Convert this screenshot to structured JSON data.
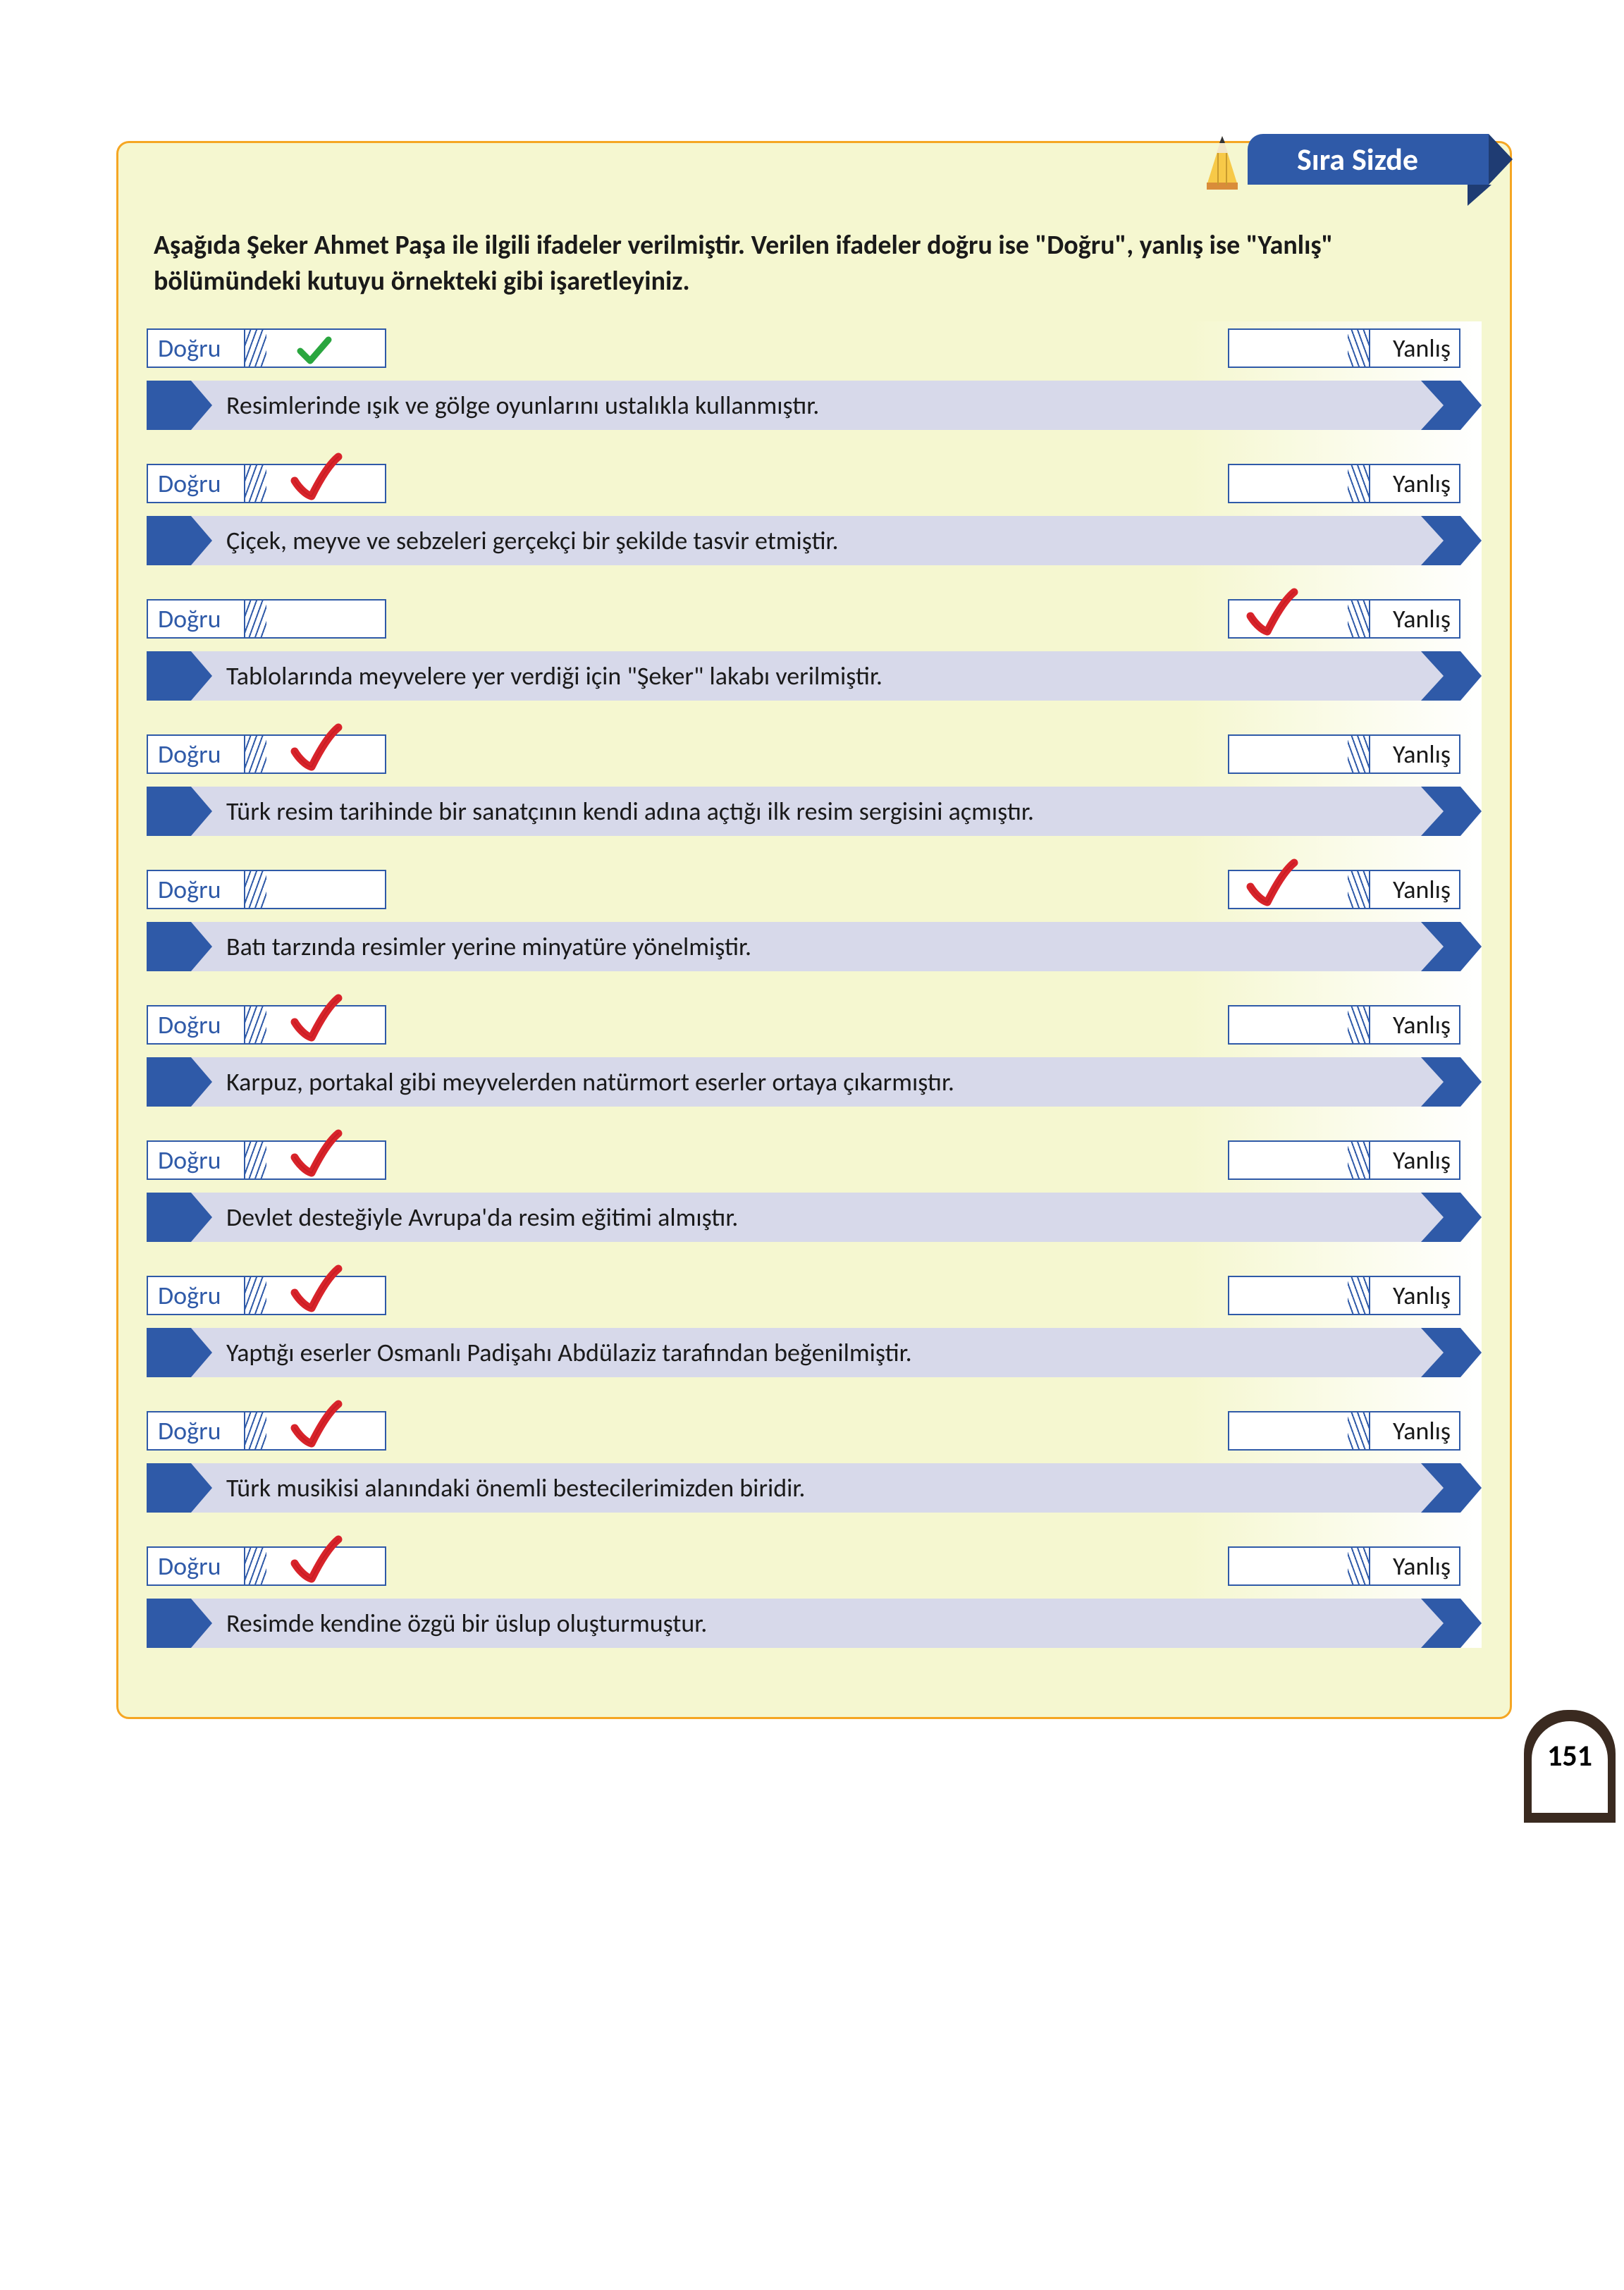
{
  "header": {
    "tab_label": "Sıra Sizde"
  },
  "instructions": "Aşağıda Şeker Ahmet Paşa ile ilgili ifadeler verilmiştir. Verilen ifadeler doğru ise \"Doğru\", yanlış ise \"Yanlış\" bölümündeki kutuyu örnekteki gibi işaretleyiniz.",
  "labels": {
    "true": "Doğru",
    "false": "Yanlış"
  },
  "page_number": "151",
  "colors": {
    "accent_blue": "#2f5aa8",
    "accent_dark": "#1f3c73",
    "panel_bg": "#f5f7d0",
    "bar_bg": "#d7d9ea",
    "border_orange": "#f5a623",
    "check_green": "#2aa63f",
    "check_red": "#d8232a"
  },
  "rows": [
    {
      "statement": "Resimlerinde ışık ve gölge oyunlarını ustalıkla kullanmıştır.",
      "mark": "dogru",
      "style": "green"
    },
    {
      "statement": "Çiçek, meyve ve sebzeleri gerçekçi bir şekilde tasvir etmiştir.",
      "mark": "dogru",
      "style": "red"
    },
    {
      "statement": "Tablolarında meyvelere yer verdiği için \"Şeker\" lakabı verilmiştir.",
      "mark": "yanlis",
      "style": "red"
    },
    {
      "statement": "Türk resim tarihinde bir sanatçının kendi adına açtığı ilk resim sergisini açmıştır.",
      "mark": "dogru",
      "style": "red"
    },
    {
      "statement": "Batı tarzında resimler yerine minyatüre yönelmiştir.",
      "mark": "yanlis",
      "style": "red"
    },
    {
      "statement": "Karpuz, portakal gibi meyvelerden natürmort eserler ortaya çıkarmıştır.",
      "mark": "dogru",
      "style": "red"
    },
    {
      "statement": "Devlet desteğiyle Avrupa'da resim eğitimi almıştır.",
      "mark": "dogru",
      "style": "red"
    },
    {
      "statement": "Yaptığı eserler Osmanlı Padişahı Abdülaziz tarafından beğenilmiştir.",
      "mark": "dogru",
      "style": "red"
    },
    {
      "statement": "Türk musikisi alanındaki önemli bestecilerimizden biridir.",
      "mark": "dogru",
      "style": "red"
    },
    {
      "statement": "Resimde  kendine özgü bir üslup oluşturmuştur.",
      "mark": "dogru",
      "style": "red"
    }
  ]
}
